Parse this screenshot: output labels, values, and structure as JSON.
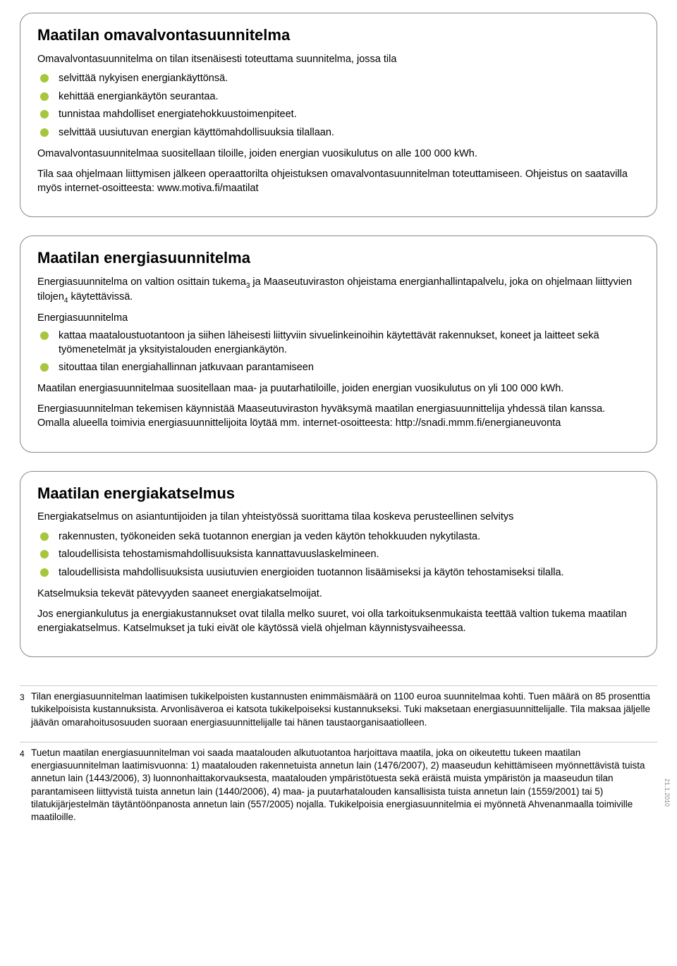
{
  "colors": {
    "bullet": "#a7c63c",
    "border": "#888888",
    "text": "#000000",
    "background": "#ffffff",
    "divider": "#cccccc",
    "side_date": "#888888"
  },
  "card1": {
    "title": "Maatilan omavalvontasuunnitelma",
    "intro": "Omavalvontasuunnitelma on tilan itsenäisesti toteuttama suunnitelma, jossa tila",
    "bullets": [
      "selvittää nykyisen energiankäyttönsä.",
      "kehittää energiankäytön seurantaa.",
      "tunnistaa mahdolliset energiatehokkuustoimenpiteet.",
      "selvittää uusiutuvan energian käyttömahdollisuuksia tilallaan."
    ],
    "p1": "Omavalvontasuunnitelmaa suositellaan tiloille, joiden energian vuosikulutus on alle 100 000 kWh.",
    "p2": "Tila saa ohjelmaan liittymisen jälkeen operaattorilta ohjeistuksen omavalvontasuunnitelman toteuttamiseen. Ohjeistus on saatavilla myös internet-osoitteesta: www.motiva.fi/maatilat"
  },
  "card2": {
    "title": "Maatilan energiasuunnitelma",
    "intro_a": "Energiasuunnitelma on valtion osittain tukema",
    "intro_sub1": "3",
    "intro_b": " ja Maaseutuviraston ohjeistama energianhallintapalvelu, joka on ohjelmaan liittyvien tilojen",
    "intro_sub2": "4",
    "intro_c": " käytettävissä.",
    "subhead": "Energiasuunnitelma",
    "bullets": [
      "kattaa maataloustuotantoon ja siihen läheisesti liittyviin sivuelinkeinoihin käytettävät rakennukset, koneet ja laitteet sekä työmenetelmät ja yksityistalouden energiankäytön.",
      "sitouttaa tilan energiahallinnan jatkuvaan parantamiseen"
    ],
    "p1": "Maatilan energiasuunnitelmaa suositellaan maa- ja puutarhatiloille, joiden energian vuosikulutus on yli 100 000 kWh.",
    "p2": "Energiasuunnitelman tekemisen käynnistää Maaseutuviraston hyväksymä maatilan energiasuunnittelija yhdessä tilan kanssa. Omalla alueella toimivia energiasuunnittelijoita löytää mm. internet-osoitteesta: http://snadi.mmm.fi/energianeuvonta"
  },
  "card3": {
    "title": "Maatilan energiakatselmus",
    "intro": "Energiakatselmus on asiantuntijoiden ja tilan yhteistyössä suorittama tilaa koskeva perusteellinen selvitys",
    "bullets": [
      "rakennusten, työkoneiden sekä tuotannon energian ja veden käytön tehokkuuden nykytilasta.",
      "taloudellisista tehostamismahdollisuuksista kannattavuuslaskelmineen.",
      "taloudellisista mahdollisuuksista uusiutuvien energioiden tuotannon lisäämiseksi ja käytön tehostamiseksi tilalla."
    ],
    "p1": "Katselmuksia tekevät pätevyyden saaneet energiakatselmoijat.",
    "p2": "Jos energiankulutus ja energiakustannukset ovat tilalla melko suuret, voi olla tarkoituksenmukaista teettää valtion tukema maatilan energiakatselmus. Katselmukset ja tuki eivät ole käytössä vielä ohjelman käynnistysvaiheessa."
  },
  "footnotes": {
    "n3": {
      "num": "3",
      "text": "Tilan energiasuunnitelman laatimisen tukikelpoisten kustannusten enimmäismäärä on 1100 euroa suunnitelmaa kohti. Tuen määrä on 85 prosenttia tukikelpoisista kustannuksista. Arvonlisäveroa ei katsota tukikelpoiseksi kustannukseksi. Tuki maksetaan energiasuunnittelijalle. Tila maksaa jäljelle jäävän omarahoitusosuuden suoraan energiasuunnittelijalle tai hänen taustaorganisaatiolleen."
    },
    "n4": {
      "num": "4",
      "text": "Tuetun maatilan energiasuunnitelman voi saada maatalouden alkutuotantoa harjoittava maatila, joka on oikeutettu tukeen maatilan energiasuunnitelman laatimisvuonna: 1) maatalouden rakennetuista annetun lain (1476/2007), 2) maaseudun kehittämiseen myönnettävistä tuista annetun lain (1443/2006), 3) luonnonhaittakorvauksesta, maatalouden ympäristötuesta sekä eräistä muista ympäristön ja maaseudun tilan parantamiseen liittyvistä tuista annetun lain (1440/2006), 4) maa- ja puutarhatalouden kansallisista tuista annetun lain (1559/2001) tai 5) tilatukijärjestelmän täytäntöönpanosta annetun lain (557/2005) nojalla. Tukikelpoisia energiasuunnitelmia ei myönnetä Ahvenanmaalla toimiville maatiloille."
    }
  },
  "side_date": "21.1.2010"
}
